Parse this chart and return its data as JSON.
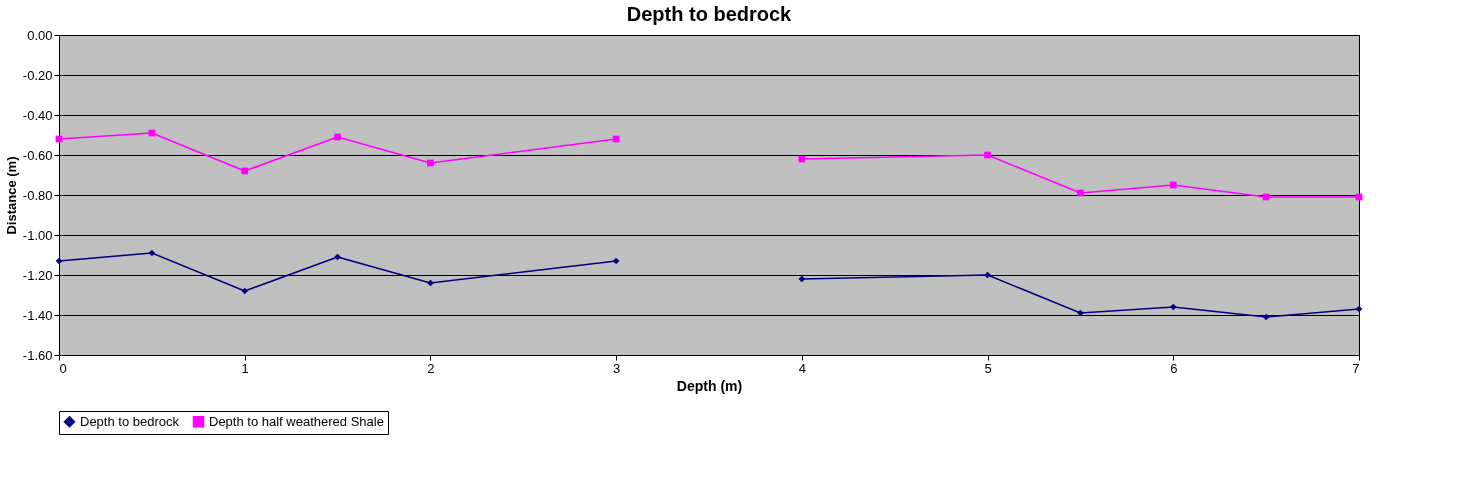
{
  "chart_data": {
    "type": "line",
    "title": "Depth to bedrock",
    "xlabel": "Depth (m)",
    "ylabel": "Distance (m)",
    "x": [
      0,
      0.5,
      1,
      1.5,
      2,
      3,
      3.5,
      4,
      5,
      5.5,
      6,
      6.5,
      7
    ],
    "series": [
      {
        "name": "Depth to bedrock",
        "color": "#000080",
        "marker": "diamond",
        "values": [
          -1.13,
          -1.09,
          -1.28,
          -1.11,
          -1.24,
          -1.13,
          null,
          -1.22,
          -1.2,
          -1.39,
          -1.36,
          -1.41,
          -1.37
        ]
      },
      {
        "name": "Depth to half weathered Shale",
        "color": "#ff00ff",
        "marker": "square",
        "values": [
          -0.52,
          -0.49,
          -0.68,
          -0.51,
          -0.64,
          -0.52,
          null,
          -0.62,
          -0.6,
          -0.79,
          -0.75,
          -0.81,
          -0.81
        ]
      }
    ],
    "xlim": [
      0,
      7
    ],
    "xticks": [
      0,
      1,
      2,
      3,
      4,
      5,
      6,
      7
    ],
    "ylim": [
      -1.6,
      0
    ],
    "yticks": [
      {
        "value": -1.6,
        "label": "-1.60"
      },
      {
        "value": -1.4,
        "label": "-1.40"
      },
      {
        "value": -1.2,
        "label": "-1.20"
      },
      {
        "value": -1.0,
        "label": "-1.00"
      },
      {
        "value": -0.8,
        "label": "-0.80"
      },
      {
        "value": -0.6,
        "label": "-0.60"
      },
      {
        "value": -0.4,
        "label": "-0.40"
      },
      {
        "value": -0.2,
        "label": "-0.20"
      },
      {
        "value": 0,
        "label": "0.00"
      }
    ],
    "grid": "y",
    "legend": "bottom",
    "line_style": "solid"
  }
}
